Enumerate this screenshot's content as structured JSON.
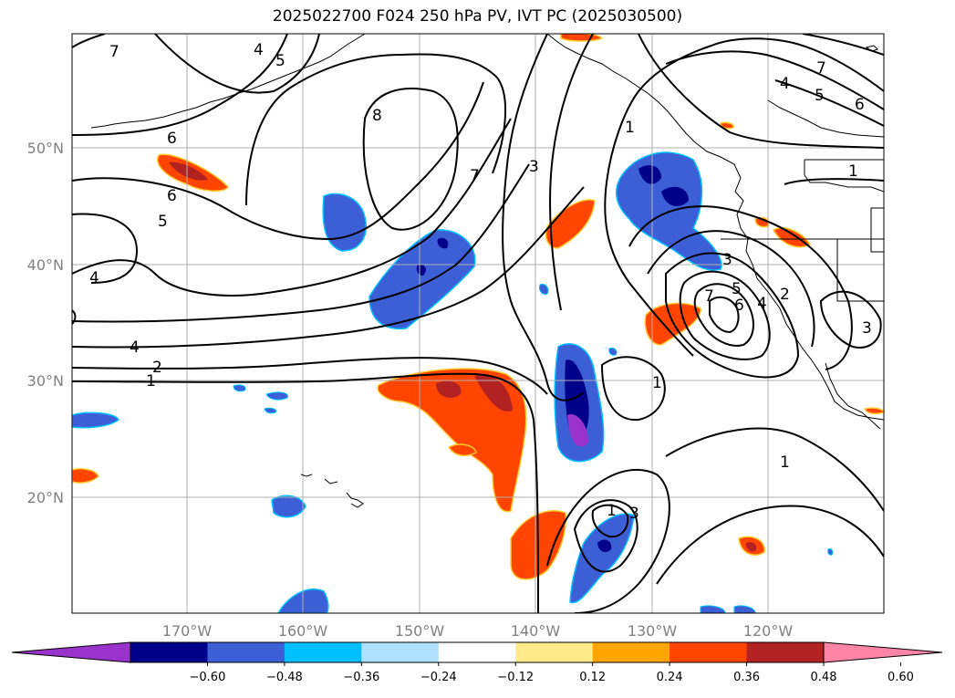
{
  "title": "2025022700 F024 250 hPa PV, IVT PC (2025030500)",
  "lon_ticks": [
    "170°W",
    "160°W",
    "150°W",
    "140°W",
    "130°W",
    "120°W"
  ],
  "lat_ticks": [
    "50°N",
    "40°N",
    "30°N",
    "20°N"
  ],
  "colorbar": {
    "colors": [
      "#9933cc",
      "#00008b",
      "#3d5fd6",
      "#00bfff",
      "#b0e2ff",
      "#ffffff",
      "#ffeb8a",
      "#ffa500",
      "#ff4500",
      "#b22222",
      "#ff85a8"
    ],
    "labels": [
      "−0.60",
      "−0.48",
      "−0.36",
      "−0.24",
      "−0.12",
      "0.12",
      "0.24",
      "0.36",
      "0.48",
      "0.60"
    ]
  },
  "contour_labels": [
    "7",
    "4",
    "5",
    "6",
    "6",
    "5",
    "4",
    "4",
    "2",
    "1",
    "8",
    "7",
    "3",
    "1",
    "1",
    "1",
    "7",
    "4",
    "5",
    "6",
    "2",
    "4",
    "7",
    "6",
    "5",
    "3",
    "3",
    "1",
    "3",
    "1"
  ]
}
